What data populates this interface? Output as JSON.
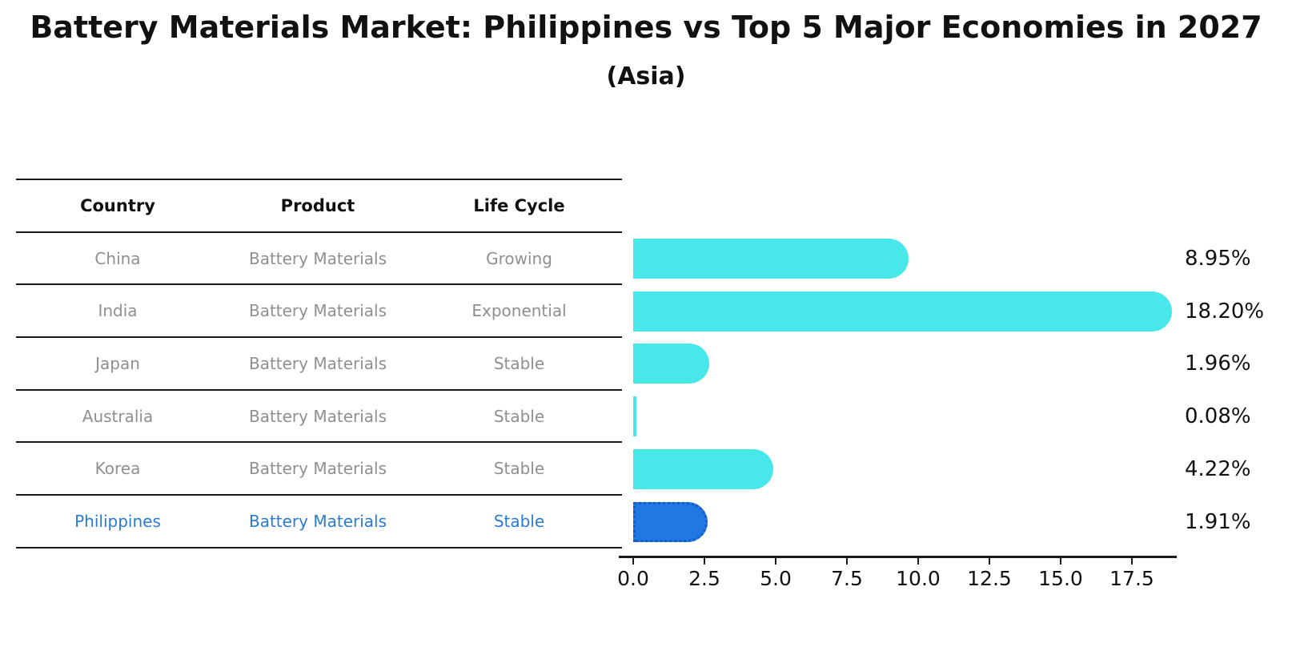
{
  "title": "Battery Materials Market: Philippines vs Top 5 Major Economies in 2027",
  "subtitle": "(Asia)",
  "table": {
    "headers": [
      "Country",
      "Product",
      "Life Cycle"
    ]
  },
  "chart_data": {
    "type": "bar",
    "orientation": "horizontal",
    "title": "Battery Materials Market: Philippines vs Top 5 Major Economies in 2027",
    "subtitle": "(Asia)",
    "x_ticks": [
      "0.0",
      "2.5",
      "5.0",
      "7.5",
      "10.0",
      "12.5",
      "15.0",
      "17.5"
    ],
    "xlim": [
      0,
      19.5
    ],
    "grid": false,
    "legend": "none",
    "rows": [
      {
        "country": "China",
        "product": "Battery Materials",
        "life_cycle": "Growing",
        "value": 8.95,
        "label": "8.95%",
        "highlight": false
      },
      {
        "country": "India",
        "product": "Battery Materials",
        "life_cycle": "Exponential",
        "value": 18.2,
        "label": "18.20%",
        "highlight": false
      },
      {
        "country": "Japan",
        "product": "Battery Materials",
        "life_cycle": "Stable",
        "value": 1.96,
        "label": "1.96%",
        "highlight": false
      },
      {
        "country": "Australia",
        "product": "Battery Materials",
        "life_cycle": "Stable",
        "value": 0.08,
        "label": "0.08%",
        "highlight": false
      },
      {
        "country": "Korea",
        "product": "Battery Materials",
        "life_cycle": "Stable",
        "value": 4.22,
        "label": "4.22%",
        "highlight": false
      },
      {
        "country": "Philippines",
        "product": "Battery Materials",
        "life_cycle": "Stable",
        "value": 1.91,
        "label": "1.91%",
        "highlight": true
      }
    ],
    "colors": {
      "bar": "#48E7EA",
      "highlight_bar": "#2078E5",
      "highlight_border": "#155AC8",
      "highlight_text": "#2A7BD4",
      "row_text": "#8F8F8F",
      "header_text": "#111111",
      "axis": "#1A1A1A",
      "value_text": "#111111"
    }
  }
}
